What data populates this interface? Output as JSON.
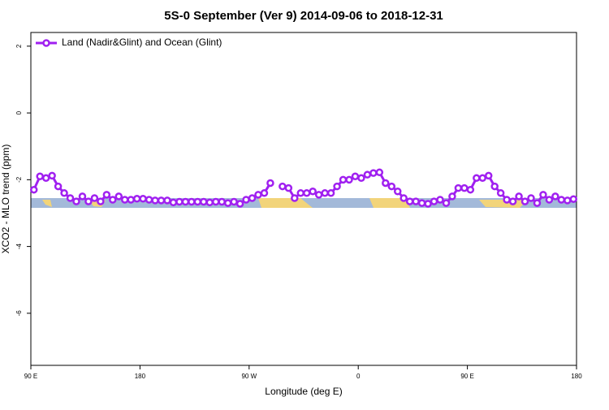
{
  "chart_data": {
    "type": "line",
    "title": "5S-0 September (Ver 9)   2014-09-06 to 2018-12-31",
    "x_label": "Longitude (deg E)",
    "y_label": "XCO2 - MLO trend (ppm)",
    "x": [
      92.5,
      97.5,
      102.5,
      107.5,
      112.5,
      117.5,
      122.5,
      127.5,
      132.5,
      137.5,
      142.5,
      147.5,
      152.5,
      157.5,
      162.5,
      167.5,
      172.5,
      177.5,
      182.5,
      187.5,
      192.5,
      197.5,
      202.5,
      207.5,
      212.5,
      217.5,
      222.5,
      227.5,
      232.5,
      237.5,
      242.5,
      247.5,
      252.5,
      257.5,
      262.5,
      267.5,
      272.5,
      277.5,
      282.5,
      287.5,
      292.5,
      297.5,
      302.5,
      307.5,
      312.5,
      317.5,
      322.5,
      327.5,
      332.5,
      337.5,
      342.5,
      347.5,
      352.5,
      357.5,
      362.5,
      367.5,
      372.5,
      377.5,
      382.5,
      387.5,
      392.5,
      397.5,
      402.5,
      407.5,
      412.5,
      417.5,
      422.5,
      427.5,
      432.5,
      437.5,
      442.5,
      447.5,
      452.5,
      457.5,
      462.5,
      467.5,
      472.5,
      477.5,
      482.5,
      487.5,
      492.5,
      497.5,
      502.5,
      507.5,
      512.5,
      517.5,
      522.5,
      527.5,
      532.5,
      537.5
    ],
    "series": [
      {
        "name": "Land (Nadir&Glint) and Ocean (Glint)",
        "color": "#a020f0",
        "values": [
          -2.3,
          -1.9,
          -1.95,
          -1.88,
          -2.2,
          -2.4,
          -2.55,
          -2.65,
          -2.5,
          -2.65,
          -2.55,
          -2.65,
          -2.45,
          -2.6,
          -2.5,
          -2.6,
          -2.6,
          -2.57,
          -2.57,
          -2.6,
          -2.62,
          -2.62,
          -2.62,
          -2.68,
          -2.66,
          -2.66,
          -2.66,
          -2.66,
          -2.66,
          -2.68,
          -2.66,
          -2.66,
          -2.7,
          -2.66,
          -2.72,
          -2.6,
          -2.55,
          -2.45,
          -2.4,
          -2.1,
          null,
          -2.2,
          -2.25,
          -2.55,
          -2.4,
          -2.4,
          -2.35,
          -2.45,
          -2.4,
          -2.4,
          -2.2,
          -2.0,
          -2.0,
          -1.9,
          -1.95,
          -1.85,
          -1.8,
          -1.78,
          -2.1,
          -2.2,
          -2.35,
          -2.55,
          -2.65,
          -2.65,
          -2.7,
          -2.72,
          -2.65,
          -2.6,
          -2.7,
          -2.5,
          -2.25,
          -2.25,
          -2.3,
          -1.95,
          -1.95,
          -1.88,
          -2.2,
          -2.4,
          -2.6,
          -2.65,
          -2.5,
          -2.65,
          -2.55,
          -2.7,
          -2.45,
          -2.6,
          -2.5,
          -2.6,
          -2.62,
          -2.58
        ]
      }
    ],
    "xlim": [
      90,
      540
    ],
    "xticks": [
      {
        "value": 90,
        "label": "90 E"
      },
      180,
      {
        "value": 270,
        "label": "90 W"
      },
      {
        "value": 360,
        "label": "0"
      },
      {
        "value": 450,
        "label": "90 E"
      },
      {
        "value": 540,
        "label": "180"
      }
    ],
    "ylim": [
      -7.56,
      2.41
    ],
    "yticks": [
      -6,
      -4,
      -2,
      0,
      2
    ],
    "legend": "top-left"
  }
}
